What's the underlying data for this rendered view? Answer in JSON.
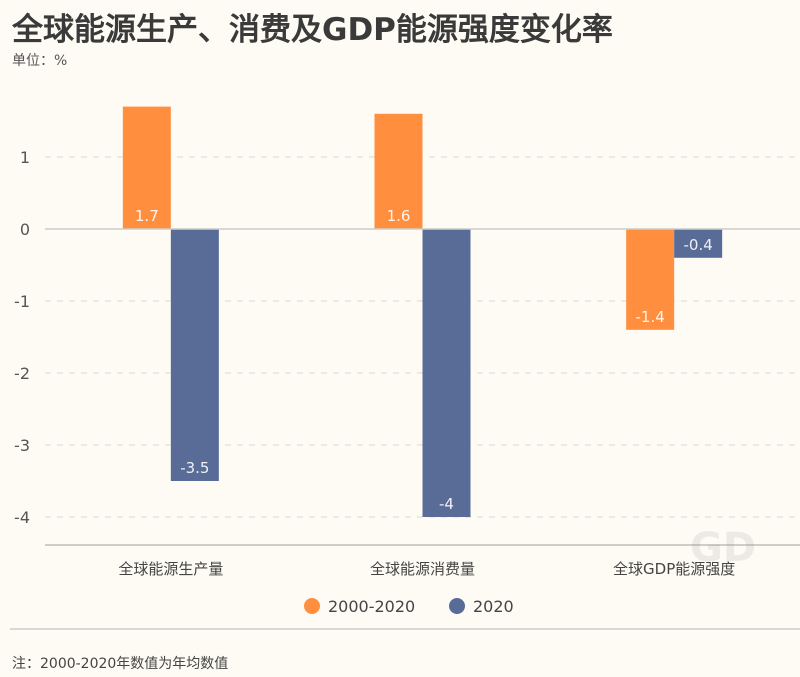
{
  "title": "全球能源生产、消费及GDP能源强度变化率",
  "unit_label": "单位：%",
  "note": "注：2000-2020年数值为年均数值",
  "colors": {
    "series_2000_2020": "#ff8f3f",
    "series_2020": "#596c97",
    "background": "#fdfbf4"
  },
  "chart_data": {
    "type": "bar",
    "title": "全球能源生产、消费及GDP能源强度变化率",
    "xlabel": "",
    "ylabel": "单位：%",
    "ylim": [
      -4.3,
      2.0
    ],
    "yticks": [
      1,
      0,
      -1,
      -2,
      -3,
      -4
    ],
    "ytick_labels": [
      "1",
      "0",
      "-1",
      "-2",
      "-3",
      "-4"
    ],
    "grid": "horizontal dashed",
    "legend_position": "bottom-center",
    "categories": [
      "全球能源生产量",
      "全球能源消费量",
      "全球GDP能源强度"
    ],
    "series": [
      {
        "name": "2000-2020",
        "values": [
          1.7,
          1.6,
          -1.4
        ],
        "labels": [
          "1.7",
          "1.6",
          "-1.4"
        ],
        "color": "#ff8f3f"
      },
      {
        "name": "2020",
        "values": [
          -3.5,
          -4,
          -0.4
        ],
        "labels": [
          "-3.5",
          "-4",
          "-0.4"
        ],
        "color": "#596c97"
      }
    ]
  }
}
